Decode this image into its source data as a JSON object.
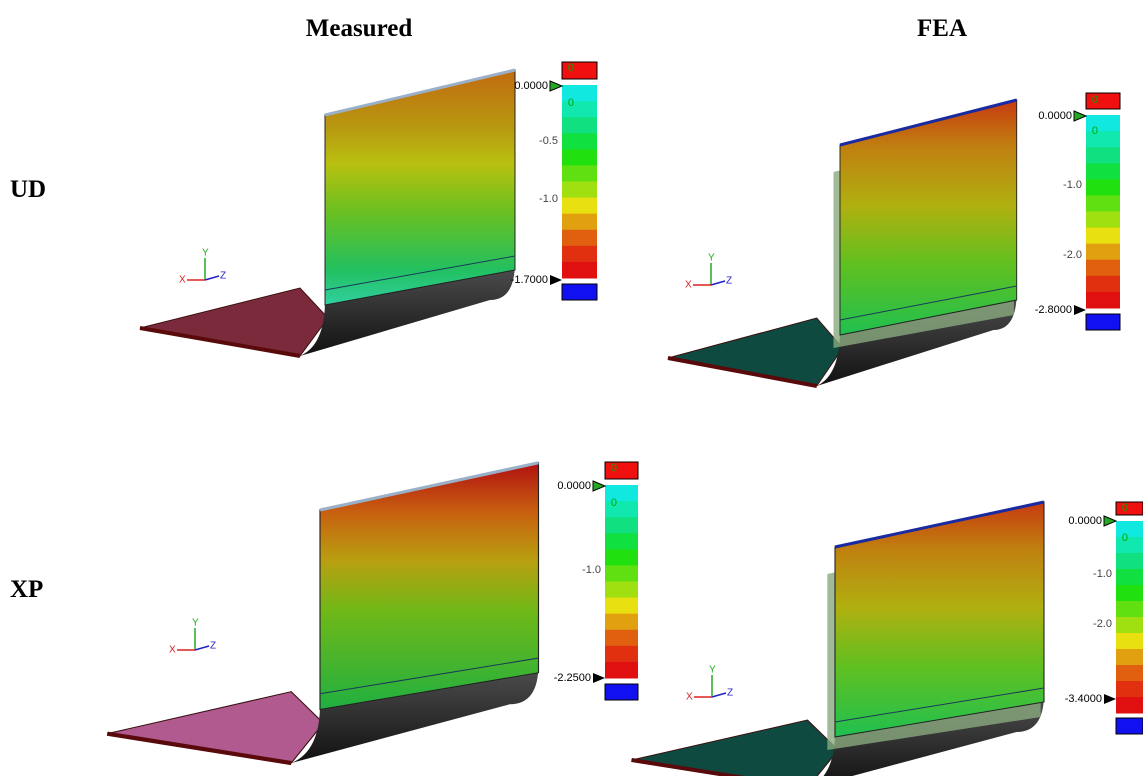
{
  "header": {
    "columns": [
      "Measured",
      "FEA"
    ]
  },
  "rows": [
    {
      "label": "UD",
      "panels": [
        {
          "scale": {
            "top": "0",
            "marker_top": "0.0000",
            "start": "0",
            "ticks": [
              "-0.5",
              "-1.0"
            ],
            "marker_bottom": "-1.7000"
          },
          "axes": [
            "X",
            "Y",
            "Z"
          ]
        },
        {
          "scale": {
            "top": "0",
            "marker_top": "0.0000",
            "start": "0",
            "ticks": [
              "-1.0",
              "-2.0"
            ],
            "marker_bottom": "-2.8000"
          },
          "axes": [
            "X",
            "Y",
            "Z"
          ]
        }
      ]
    },
    {
      "label": "XP",
      "panels": [
        {
          "scale": {
            "top": "0",
            "marker_top": "0.0000",
            "start": "0",
            "ticks": [
              "-1.0"
            ],
            "marker_bottom": "-2.2500"
          },
          "axes": [
            "X",
            "Y",
            "Z"
          ]
        },
        {
          "scale": {
            "top": "0",
            "marker_top": "0.0000",
            "start": "0",
            "ticks": [
              "-1.0",
              "-2.0"
            ],
            "marker_bottom": "-3.4000"
          },
          "axes": [
            "X",
            "Y",
            "Z"
          ]
        }
      ]
    }
  ]
}
